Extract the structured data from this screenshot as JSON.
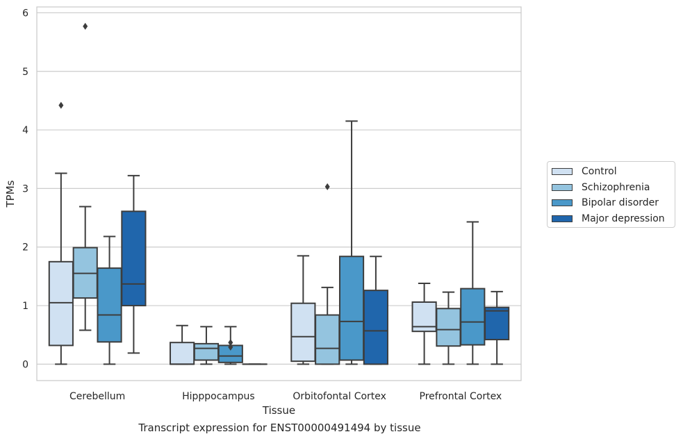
{
  "caption": "Transcript expression for ENST00000491494 by tissue",
  "chart_data": {
    "type": "box",
    "xlabel": "Tissue",
    "ylabel": "TPMs",
    "ylim": [
      -0.28,
      6.1
    ],
    "yticks": [
      0,
      1,
      2,
      3,
      4,
      5,
      6
    ],
    "grid": "horizontal",
    "legend_position": "right",
    "categories": [
      "Cerebellum",
      "Hipppocampus",
      "Orbitofontal Cortex",
      "Prefrontal Cortex"
    ],
    "series": [
      {
        "name": "Control",
        "color": "#d0e1f2",
        "boxes": [
          {
            "whislo": 0,
            "q1": 0.32,
            "med": 1.05,
            "q3": 1.75,
            "whishi": 3.26,
            "fliers": [
              4.42
            ]
          },
          {
            "whislo": 0,
            "q1": 0.0,
            "med": 0.0,
            "q3": 0.37,
            "whishi": 0.66,
            "fliers": []
          },
          {
            "whislo": 0,
            "q1": 0.05,
            "med": 0.47,
            "q3": 1.04,
            "whishi": 1.85,
            "fliers": []
          },
          {
            "whislo": 0,
            "q1": 0.56,
            "med": 0.64,
            "q3": 1.06,
            "whishi": 1.38,
            "fliers": []
          }
        ]
      },
      {
        "name": "Schizophrenia",
        "color": "#94c4df",
        "boxes": [
          {
            "whislo": 0.58,
            "q1": 1.13,
            "med": 1.55,
            "q3": 1.99,
            "whishi": 2.69,
            "fliers": [
              5.77
            ]
          },
          {
            "whislo": 0,
            "q1": 0.07,
            "med": 0.27,
            "q3": 0.35,
            "whishi": 0.64,
            "fliers": []
          },
          {
            "whislo": 0,
            "q1": 0.0,
            "med": 0.27,
            "q3": 0.84,
            "whishi": 1.31,
            "fliers": [
              3.03
            ]
          },
          {
            "whislo": 0,
            "q1": 0.31,
            "med": 0.59,
            "q3": 0.95,
            "whishi": 1.23,
            "fliers": []
          }
        ]
      },
      {
        "name": "Bipolar disorder",
        "color": "#4a98c9",
        "boxes": [
          {
            "whislo": 0,
            "q1": 0.38,
            "med": 0.84,
            "q3": 1.64,
            "whishi": 2.18,
            "fliers": []
          },
          {
            "whislo": 0,
            "q1": 0.03,
            "med": 0.14,
            "q3": 0.32,
            "whishi": 0.64,
            "fliers": [
              0.29,
              0.37
            ]
          },
          {
            "whislo": 0,
            "q1": 0.07,
            "med": 0.73,
            "q3": 1.84,
            "whishi": 4.15,
            "fliers": []
          },
          {
            "whislo": 0,
            "q1": 0.33,
            "med": 0.72,
            "q3": 1.29,
            "whishi": 2.43,
            "fliers": []
          }
        ]
      },
      {
        "name": "Major depression",
        "color": "#2066ac",
        "boxes": [
          {
            "whislo": 0.19,
            "q1": 1.0,
            "med": 1.37,
            "q3": 2.61,
            "whishi": 3.22,
            "fliers": []
          },
          {
            "whislo": 0,
            "q1": 0.0,
            "med": 0.0,
            "q3": 0.0,
            "whishi": 0.0,
            "fliers": []
          },
          {
            "whislo": 0,
            "q1": 0.0,
            "med": 0.57,
            "q3": 1.26,
            "whishi": 1.84,
            "fliers": []
          },
          {
            "whislo": 0,
            "q1": 0.42,
            "med": 0.91,
            "q3": 0.97,
            "whishi": 1.24,
            "fliers": []
          }
        ]
      }
    ]
  }
}
